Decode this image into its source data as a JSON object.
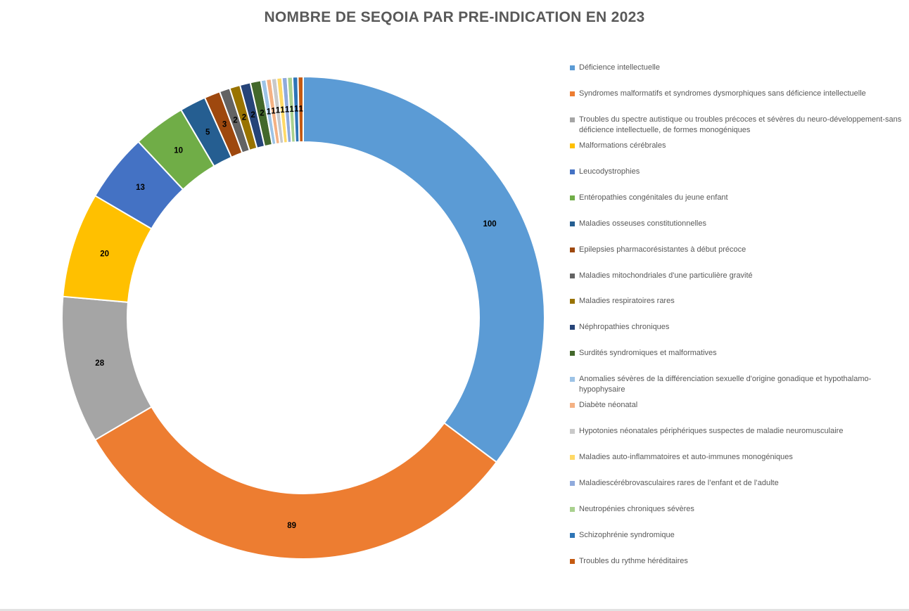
{
  "title": "NOMBRE DE SEQOIA PAR PRE-INDICATION EN 2023",
  "chart_data": {
    "type": "pie",
    "subtype": "doughnut",
    "title": "NOMBRE DE SEQOIA PAR PRE-INDICATION EN 2023",
    "legend_position": "right",
    "hole_ratio": 0.73,
    "start_angle_deg": 0,
    "direction": "clockwise",
    "data_labels": "value",
    "categories": [
      "Déficience intellectuelle",
      "Syndromes malformatifs et syndromes dysmorphiques sans déficience intellectuelle",
      "Troubles du spectre autistique ou troubles précoces et sévères du neuro-développement-sans déficience intellectuelle, de formes monogéniques",
      "Malformations cérébrales",
      "Leucodystrophies",
      "Entéropathies congénitales du jeune enfant",
      "Maladies osseuses constitutionnelles",
      "Epilepsies pharmacorésistantes à début précoce",
      "Maladies mitochondriales d'une particulière gravité",
      "Maladies respiratoires rares",
      "Néphropathies chroniques",
      "Surdités syndromiques et malformatives",
      "Anomalies sévères de la différenciation sexuelle d'origine gonadique et hypothalamo-hypophysaire",
      "Diabète néonatal",
      "Hypotonies néonatales périphériques suspectes de maladie neuromusculaire",
      "Maladies auto-inflammatoires et auto-immunes monogéniques",
      "Maladiescérébrovasculaires rares de l’enfant et de l’adulte",
      "Neutropénies chroniques sévères",
      "Schizophrénie syndromique",
      "Troubles du rythme héréditaires"
    ],
    "values": [
      100,
      89,
      28,
      20,
      13,
      10,
      5,
      3,
      2,
      2,
      2,
      2,
      1,
      1,
      1,
      1,
      1,
      1,
      1,
      1
    ],
    "colors": [
      "#5B9BD5",
      "#ED7D31",
      "#A5A5A5",
      "#FFC000",
      "#4472C4",
      "#70AD47",
      "#255E91",
      "#9E480E",
      "#636363",
      "#997300",
      "#264478",
      "#43682B",
      "#9DC3E6",
      "#F4B183",
      "#C9C9C9",
      "#FFD966",
      "#8FAADC",
      "#A9D18E",
      "#2E75B6",
      "#C55A11"
    ]
  },
  "styles": {
    "title_color": "#595959",
    "legend_text_color": "#595959",
    "data_label_color": "#000000",
    "segment_separator_color": "#FFFFFF",
    "background": "#FFFFFF",
    "bottom_strip_color": "#E2E2E2"
  }
}
